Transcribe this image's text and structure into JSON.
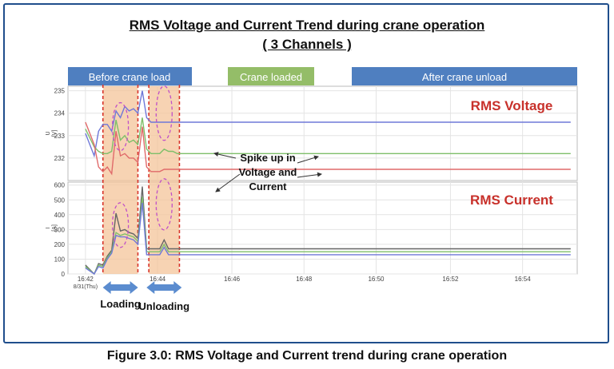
{
  "header": {
    "title_line1": "RMS Voltage and Current Trend during crane operation",
    "title_line2": "( 3 Channels )"
  },
  "caption": "Figure 3.0:  RMS Voltage and Current trend during crane operation",
  "colors": {
    "phase_blue": "#6f78d8",
    "phase_green": "#7fbf6a",
    "phase_red": "#e06a6a",
    "phase_grey": "#666666",
    "band_fill": "#f4c49a",
    "band_dash": "#d8342b",
    "label_red": "#c8312b",
    "header_blue": "#4f7fc0",
    "header_green": "#94bd68",
    "arrow_blue": "#5b8ccf",
    "ellipse": "#c050c8"
  },
  "chart_data": {
    "type": "line",
    "x_tick_labels": [
      "16:42",
      "16:44",
      "16:46",
      "16:48",
      "16:50",
      "16:52",
      "16:54"
    ],
    "x_date_label": "8/31(Thu)",
    "phase_labels": [
      "Before crane load",
      "Crane loaded",
      "After crane unload"
    ],
    "event_labels": [
      "Loading",
      "Unloading"
    ],
    "annotation": "Spike up in\nVoltage and\nCurrent",
    "voltage": {
      "label": "RMS Voltage",
      "ylabel": "U\n[V]",
      "ylim": [
        231,
        235.2
      ],
      "yticks": [
        232,
        233,
        234,
        235
      ],
      "x": [
        16.7,
        16.74,
        16.76,
        16.78,
        16.8,
        16.82,
        16.84,
        16.86,
        16.88,
        16.9,
        16.92,
        16.94,
        16.96,
        16.98,
        17.0,
        17.02,
        17.04,
        17.06,
        17.08,
        17.1,
        17.12,
        17.14,
        17.16,
        17.18,
        17.2,
        17.22,
        17.24,
        17.26,
        17.28,
        17.3,
        17.32,
        17.34,
        17.36,
        17.38,
        17.4,
        17.42,
        17.44,
        17.46,
        17.48,
        17.5,
        17.52,
        17.54,
        17.56,
        17.58,
        17.6,
        17.62,
        17.64,
        17.66,
        17.68,
        17.7,
        17.72,
        17.74,
        17.76,
        17.78,
        17.8,
        17.82,
        17.84,
        17.86,
        17.88,
        17.9,
        17.92,
        17.94,
        17.96,
        17.98,
        18.0,
        18.02,
        18.04,
        18.06,
        18.08,
        18.1,
        18.12,
        18.14,
        18.16,
        18.18,
        18.2,
        18.22,
        18.24,
        18.26,
        18.28,
        18.3,
        18.32,
        18.34,
        18.36,
        18.38,
        18.4,
        18.42,
        18.44,
        18.46,
        18.48,
        18.5,
        18.52,
        18.54,
        18.56,
        18.58,
        18.6,
        18.62,
        18.64,
        18.66,
        18.68,
        18.7,
        18.72,
        18.74,
        18.76,
        18.78,
        18.8,
        18.82,
        18.84,
        18.86,
        18.88,
        18.9,
        18.92
      ],
      "series": [
        {
          "values": [
            233.1,
            232.1,
            233.2,
            233.5,
            233.5,
            233.2,
            234.1,
            233.8,
            234.3,
            234.1,
            234.2,
            234.0,
            235.0,
            233.8,
            233.6,
            233.6,
            233.6,
            233.6,
            233.6,
            233.6,
            233.6,
            233.6,
            233.6,
            233.6,
            233.6,
            233.6,
            233.6,
            233.6,
            233.6,
            233.6,
            233.6,
            233.6,
            233.6,
            233.6,
            233.6,
            233.6,
            233.6,
            233.6,
            233.6,
            233.6,
            233.6,
            233.6,
            233.6,
            233.6,
            233.6,
            233.6,
            233.6,
            233.6,
            233.6,
            233.6,
            233.6,
            233.6,
            233.6,
            233.6,
            233.6,
            233.6,
            233.6,
            233.6,
            233.6,
            233.6,
            233.6,
            233.6,
            233.6,
            233.6,
            233.6,
            233.6,
            233.6,
            233.6,
            233.6,
            233.6,
            233.6,
            233.6,
            233.6,
            233.6,
            233.6,
            233.6,
            233.6,
            233.6,
            233.6,
            233.6,
            233.6,
            233.6,
            233.6,
            233.6,
            233.6,
            233.6,
            233.6,
            233.6,
            233.6,
            233.6,
            233.6,
            233.6,
            233.6,
            233.6,
            233.6,
            233.6,
            233.6,
            233.6,
            233.6,
            233.6,
            233.6,
            233.6,
            233.6,
            233.6,
            233.6,
            233.6,
            233.6,
            233.6,
            233.6,
            233.6,
            233.6
          ]
        },
        {
          "values": [
            233.3,
            232.5,
            232.3,
            232.2,
            232.2,
            232.3,
            233.7,
            232.8,
            233.0,
            232.7,
            232.8,
            232.6,
            233.8,
            232.4,
            232.2,
            232.2,
            232.2,
            232.4,
            232.3,
            232.3,
            232.2,
            232.2,
            232.2,
            232.2,
            232.2,
            232.2,
            232.2,
            232.2,
            232.2,
            232.2,
            232.2,
            232.2,
            232.2,
            232.2,
            232.2,
            232.2,
            232.2,
            232.2,
            232.2,
            232.2,
            232.2,
            232.2,
            232.2,
            232.2,
            232.2,
            232.2,
            232.2,
            232.2,
            232.2,
            232.2,
            232.2,
            232.2,
            232.2,
            232.2,
            232.2,
            232.2,
            232.2,
            232.2,
            232.2,
            232.2,
            232.2,
            232.2,
            232.2,
            232.2,
            232.2,
            232.2,
            232.2,
            232.2,
            232.2,
            232.2,
            232.2,
            232.2,
            232.2,
            232.2,
            232.2,
            232.2,
            232.2,
            232.2,
            232.2,
            232.2,
            232.2,
            232.2,
            232.2,
            232.2,
            232.2,
            232.2,
            232.2,
            232.2,
            232.2,
            232.2,
            232.2,
            232.2,
            232.2,
            232.2,
            232.2,
            232.2,
            232.2,
            232.2,
            232.2,
            232.2,
            232.2,
            232.2,
            232.2,
            232.2,
            232.2,
            232.2,
            232.2,
            232.2,
            232.2,
            232.2,
            232.2
          ]
        },
        {
          "values": [
            233.6,
            232.6,
            231.6,
            231.4,
            231.6,
            231.3,
            233.2,
            232.1,
            232.2,
            232.0,
            232.0,
            231.8,
            233.4,
            231.6,
            231.4,
            231.4,
            231.4,
            231.5,
            231.5,
            231.5,
            231.5,
            231.5,
            231.5,
            231.5,
            231.5,
            231.5,
            231.5,
            231.5,
            231.5,
            231.5,
            231.5,
            231.5,
            231.5,
            231.5,
            231.5,
            231.5,
            231.5,
            231.5,
            231.5,
            231.5,
            231.5,
            231.5,
            231.5,
            231.5,
            231.5,
            231.5,
            231.5,
            231.5,
            231.5,
            231.5,
            231.5,
            231.5,
            231.5,
            231.5,
            231.5,
            231.5,
            231.5,
            231.5,
            231.5,
            231.5,
            231.5,
            231.5,
            231.5,
            231.5,
            231.5,
            231.5,
            231.5,
            231.5,
            231.5,
            231.5,
            231.5,
            231.5,
            231.5,
            231.5,
            231.5,
            231.5,
            231.5,
            231.5,
            231.5,
            231.5,
            231.5,
            231.5,
            231.5,
            231.5,
            231.5,
            231.5,
            231.5,
            231.5,
            231.5,
            231.5,
            231.5,
            231.5,
            231.5,
            231.5,
            231.5,
            231.5,
            231.5,
            231.5,
            231.5,
            231.5,
            231.5,
            231.5,
            231.5,
            231.5,
            231.5,
            231.5,
            231.5,
            231.5,
            231.5,
            231.5,
            231.5
          ]
        }
      ]
    },
    "current": {
      "label": "RMS Current",
      "ylabel": "I\n[A]",
      "ylim": [
        0,
        620
      ],
      "yticks": [
        0,
        100,
        200,
        300,
        400,
        500,
        600
      ],
      "series": [
        {
          "values": [
            60,
            0,
            70,
            60,
            120,
            160,
            410,
            290,
            300,
            280,
            270,
            240,
            590,
            170,
            170,
            170,
            170,
            230,
            170,
            170,
            170,
            170,
            170,
            170,
            170,
            170,
            170,
            170,
            170,
            170,
            170,
            170,
            170,
            170,
            170,
            170,
            170,
            170,
            170,
            170,
            170,
            170,
            170,
            170,
            170,
            170,
            170,
            170,
            170,
            170,
            170,
            170,
            170,
            170,
            170,
            170,
            170,
            170,
            170,
            170,
            170,
            170,
            170,
            170,
            170,
            170,
            170,
            170,
            170,
            170,
            170,
            170,
            170,
            170,
            170,
            170,
            170,
            170,
            170,
            170,
            170,
            170,
            170,
            170,
            170,
            170,
            170,
            170,
            170,
            170,
            170,
            170,
            170,
            170,
            170,
            170,
            170,
            170,
            170,
            170,
            170,
            170,
            170,
            170,
            170,
            170,
            170,
            170,
            170,
            170,
            170
          ]
        },
        {
          "values": [
            50,
            0,
            60,
            50,
            110,
            150,
            280,
            260,
            270,
            260,
            250,
            220,
            520,
            150,
            150,
            150,
            150,
            200,
            150,
            150,
            150,
            150,
            150,
            150,
            150,
            150,
            150,
            150,
            150,
            150,
            150,
            150,
            150,
            150,
            150,
            150,
            150,
            150,
            150,
            150,
            150,
            150,
            150,
            150,
            150,
            150,
            150,
            150,
            150,
            150,
            150,
            150,
            150,
            150,
            150,
            150,
            150,
            150,
            150,
            150,
            150,
            150,
            150,
            150,
            150,
            150,
            150,
            150,
            150,
            150,
            150,
            150,
            150,
            150,
            150,
            150,
            150,
            150,
            150,
            150,
            150,
            150,
            150,
            150,
            150,
            150,
            150,
            150,
            150,
            150,
            150,
            150,
            150,
            150,
            150,
            150,
            150,
            150,
            150,
            150,
            150,
            150,
            150,
            150,
            150,
            150,
            150,
            150,
            150,
            150,
            150
          ]
        },
        {
          "values": [
            40,
            0,
            50,
            40,
            100,
            140,
            260,
            250,
            250,
            240,
            230,
            200,
            480,
            130,
            130,
            130,
            130,
            180,
            130,
            130,
            130,
            130,
            130,
            130,
            130,
            130,
            130,
            130,
            130,
            130,
            130,
            130,
            130,
            130,
            130,
            130,
            130,
            130,
            130,
            130,
            130,
            130,
            130,
            130,
            130,
            130,
            130,
            130,
            130,
            130,
            130,
            130,
            130,
            130,
            130,
            130,
            130,
            130,
            130,
            130,
            130,
            130,
            130,
            130,
            130,
            130,
            130,
            130,
            130,
            130,
            130,
            130,
            130,
            130,
            130,
            130,
            130,
            130,
            130,
            130,
            130,
            130,
            130,
            130,
            130,
            130,
            130,
            130,
            130,
            130,
            130,
            130,
            130,
            130,
            130,
            130,
            130,
            130,
            130,
            130,
            130,
            130,
            130,
            130,
            130,
            130,
            130,
            130,
            130,
            130,
            130
          ]
        }
      ]
    },
    "events_x": [
      16.86,
      17.06
    ]
  }
}
